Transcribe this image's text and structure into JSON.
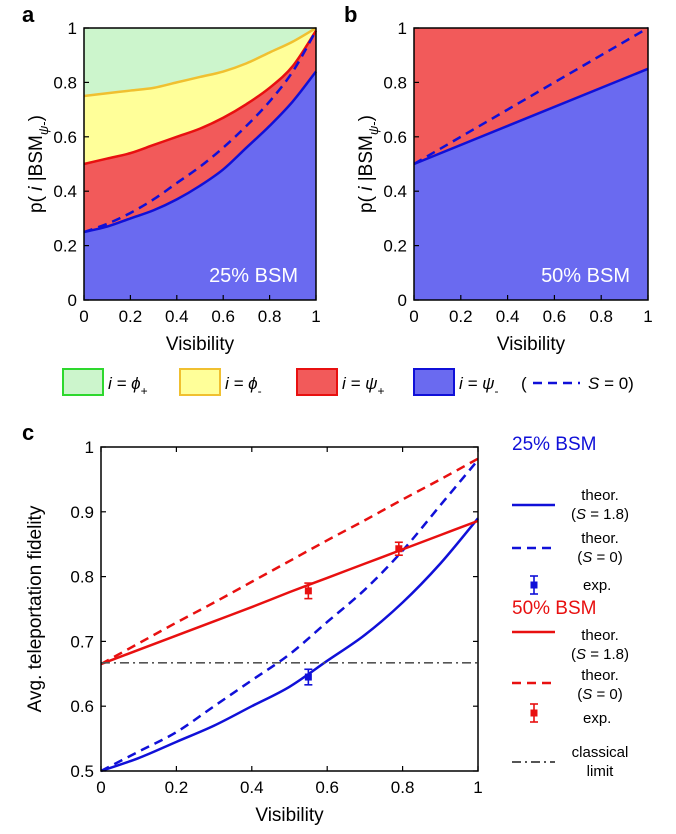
{
  "panel_labels": {
    "a": "a",
    "b": "b",
    "c": "c"
  },
  "colors": {
    "green_fill": "#ccf5cc",
    "green_line": "#2ed82e",
    "yellow_fill": "#ffff99",
    "yellow_line": "#f0c030",
    "red_fill": "#f25a5a",
    "red_line": "#e81010",
    "blue_fill": "#6a6af0",
    "blue_line": "#1010d8",
    "classical_line": "#555555"
  },
  "legend_ab": {
    "items": [
      {
        "prefix": "i = ",
        "symbol": "ϕ",
        "sub": "+",
        "swatch": "green"
      },
      {
        "prefix": "i = ",
        "symbol": "ϕ",
        "sub": "-",
        "swatch": "yellow"
      },
      {
        "prefix": "i = ",
        "symbol": "ψ",
        "sub": "+",
        "swatch": "red"
      },
      {
        "prefix": "i = ",
        "symbol": "ψ",
        "sub": "-",
        "swatch": "blue"
      }
    ],
    "dashed_open": "(",
    "dashed_label_prefix": "S",
    "dashed_label_rest": " = 0)"
  },
  "legend_c": {
    "group1_title": "25% BSM",
    "group2_title": "50% BSM",
    "theor": "theor.",
    "s18": "(S = 1.8)",
    "s18_pre": "(",
    "s18_post": " = 1.8)",
    "s0_pre": "(",
    "s0_post": " = 0)",
    "s_italic": "S",
    "exp": "exp.",
    "classical_line1": "classical",
    "classical_line2": "limit"
  },
  "chart_data": [
    {
      "type": "area",
      "panel": "a",
      "xlabel": "Visibility",
      "ylabel_parts": {
        "pre": "p( ",
        "italic": "i",
        "mid": " |BSM",
        "sub_symbol": "ψ",
        "sub_sign": "-",
        "post": ")"
      },
      "xlim": [
        0,
        1
      ],
      "ylim": [
        0,
        1
      ],
      "xticks": [
        "0",
        "0.2",
        "0.4",
        "0.6",
        "0.8",
        "1"
      ],
      "yticks": [
        "0",
        "0.2",
        "0.4",
        "0.6",
        "0.8",
        "1"
      ],
      "annotation": "25% BSM",
      "x": [
        0,
        0.1,
        0.2,
        0.3,
        0.4,
        0.5,
        0.6,
        0.7,
        0.8,
        0.9,
        1.0
      ],
      "boundaries": [
        {
          "name": "ψ- / ψ+",
          "values": [
            0.25,
            0.27,
            0.3,
            0.33,
            0.37,
            0.42,
            0.48,
            0.56,
            0.64,
            0.73,
            0.84
          ]
        },
        {
          "name": "ψ+ / ϕ-",
          "values": [
            0.5,
            0.52,
            0.54,
            0.57,
            0.6,
            0.63,
            0.67,
            0.72,
            0.78,
            0.86,
            0.99
          ]
        },
        {
          "name": "ϕ- / ϕ+",
          "values": [
            0.75,
            0.76,
            0.77,
            0.78,
            0.8,
            0.82,
            0.84,
            0.87,
            0.91,
            0.95,
            1.0
          ]
        }
      ],
      "dashed_s0": {
        "values": [
          0.25,
          0.28,
          0.32,
          0.37,
          0.43,
          0.49,
          0.56,
          0.64,
          0.73,
          0.84,
          0.99
        ]
      }
    },
    {
      "type": "area",
      "panel": "b",
      "xlabel": "Visibility",
      "ylabel_parts": {
        "pre": "p( ",
        "italic": "i",
        "mid": " |BSM",
        "sub_symbol": "ψ",
        "sub_sign": "-",
        "post": ")"
      },
      "xlim": [
        0,
        1
      ],
      "ylim": [
        0,
        1
      ],
      "xticks": [
        "0",
        "0.2",
        "0.4",
        "0.6",
        "0.8",
        "1"
      ],
      "yticks": [
        "0",
        "0.2",
        "0.4",
        "0.6",
        "0.8",
        "1"
      ],
      "annotation": "50% BSM",
      "x": [
        0,
        1
      ],
      "boundaries": [
        {
          "name": "ψ- / ψ+",
          "values": [
            0.5,
            0.85
          ]
        }
      ],
      "dashed_s0": {
        "values": [
          0.5,
          1.0
        ]
      }
    },
    {
      "type": "line",
      "panel": "c",
      "xlabel": "Visibility",
      "ylabel": "Avg. teleportation fidelity",
      "xlim": [
        0,
        1
      ],
      "ylim": [
        0.5,
        1
      ],
      "xticks": [
        "0",
        "0.2",
        "0.4",
        "0.6",
        "0.8",
        "1"
      ],
      "yticks": [
        "0.5",
        "0.6",
        "0.7",
        "0.8",
        "0.9",
        "1"
      ],
      "x": [
        0,
        0.1,
        0.2,
        0.3,
        0.4,
        0.5,
        0.6,
        0.7,
        0.8,
        0.9,
        1.0
      ],
      "series": [
        {
          "group": "25% BSM",
          "kind": "theor. S = 1.8",
          "style": "solid",
          "color": "blue",
          "values": [
            0.5,
            0.52,
            0.545,
            0.57,
            0.6,
            0.63,
            0.67,
            0.71,
            0.76,
            0.82,
            0.89
          ]
        },
        {
          "group": "25% BSM",
          "kind": "theor. S = 0",
          "style": "dashed",
          "color": "blue",
          "values": [
            0.5,
            0.53,
            0.56,
            0.6,
            0.64,
            0.68,
            0.73,
            0.78,
            0.84,
            0.91,
            0.98
          ]
        },
        {
          "group": "50% BSM",
          "kind": "theor. S = 1.8",
          "style": "solid",
          "color": "red",
          "values": [
            0.665,
            0.687,
            0.709,
            0.731,
            0.753,
            0.776,
            0.798,
            0.82,
            0.842,
            0.864,
            0.886
          ]
        },
        {
          "group": "50% BSM",
          "kind": "theor. S = 0",
          "style": "dashed",
          "color": "red",
          "values": [
            0.665,
            0.697,
            0.729,
            0.76,
            0.792,
            0.824,
            0.856,
            0.887,
            0.919,
            0.95,
            0.982
          ]
        },
        {
          "group": "classical limit",
          "kind": "classical",
          "style": "dashdot",
          "color": "gray",
          "values": [
            0.667,
            0.667,
            0.667,
            0.667,
            0.667,
            0.667,
            0.667,
            0.667,
            0.667,
            0.667,
            0.667
          ]
        }
      ],
      "points": [
        {
          "group": "25% BSM",
          "color": "blue",
          "x": 0.55,
          "y": 0.645,
          "err": 0.012
        },
        {
          "group": "50% BSM",
          "color": "red",
          "x": 0.55,
          "y": 0.778,
          "err": 0.012
        },
        {
          "group": "50% BSM",
          "color": "red",
          "x": 0.79,
          "y": 0.843,
          "err": 0.01
        }
      ]
    }
  ]
}
